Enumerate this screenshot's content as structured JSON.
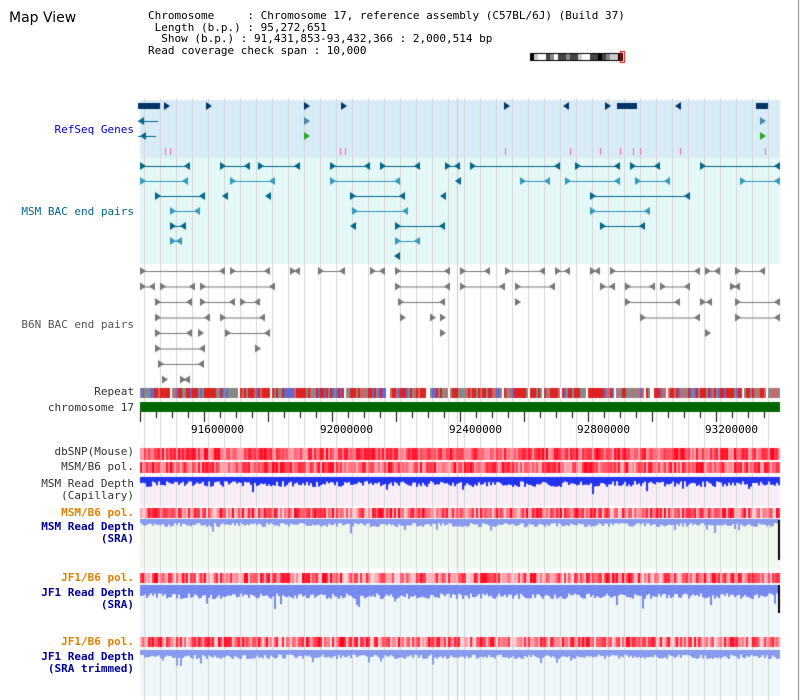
{
  "title": "Map View",
  "info": [
    "Chromosome     : Chromosome 17, reference assembly (C57BL/6J) (Build 37)",
    " Length (b.p.) : 95,272,651",
    "  Show (b.p.) : 91,431,853-93,432,366 : 2,000,514 bp",
    "Read coverage check span : 10,000"
  ],
  "ruler": {
    "ticks": [
      "91600000",
      "92000000",
      "92400000",
      "92800000",
      "93200000"
    ]
  },
  "tracks": {
    "refseq": "RefSeq Genes",
    "msm_bac": "MSM BAC end pairs",
    "b6n_bac": "B6N BAC end pairs",
    "repeat": "Repeat",
    "chromosome": "chromosome 17",
    "dbsnp": "dbSNP(Mouse)",
    "msm_pol": "MSM/B6 pol.",
    "msm_depth_cap_1": "MSM Read Depth",
    "msm_depth_cap_2": "(Capillary)",
    "msm_pol2": "MSM/B6 pol.",
    "msm_depth_sra_1": "MSM Read Depth",
    "msm_depth_sra_2": "(SRA)",
    "jf1_pol": "JF1/B6 pol.",
    "jf1_depth_sra_1": "JF1 Read Depth",
    "jf1_depth_sra_2": "(SRA)",
    "jf1_pol2": "JF1/B6 pol.",
    "jf1_depth_trim_1": "JF1 Read Depth",
    "jf1_depth_trim_2": "(SRA trimmed)"
  },
  "colors": {
    "refseq_label": "#0000cc",
    "msm_bac_label": "#006688",
    "b6n_bac_label": "#555555",
    "pol_orange": "#e08000",
    "depth_blue": "#000099",
    "chromosome_green": "#006600"
  }
}
